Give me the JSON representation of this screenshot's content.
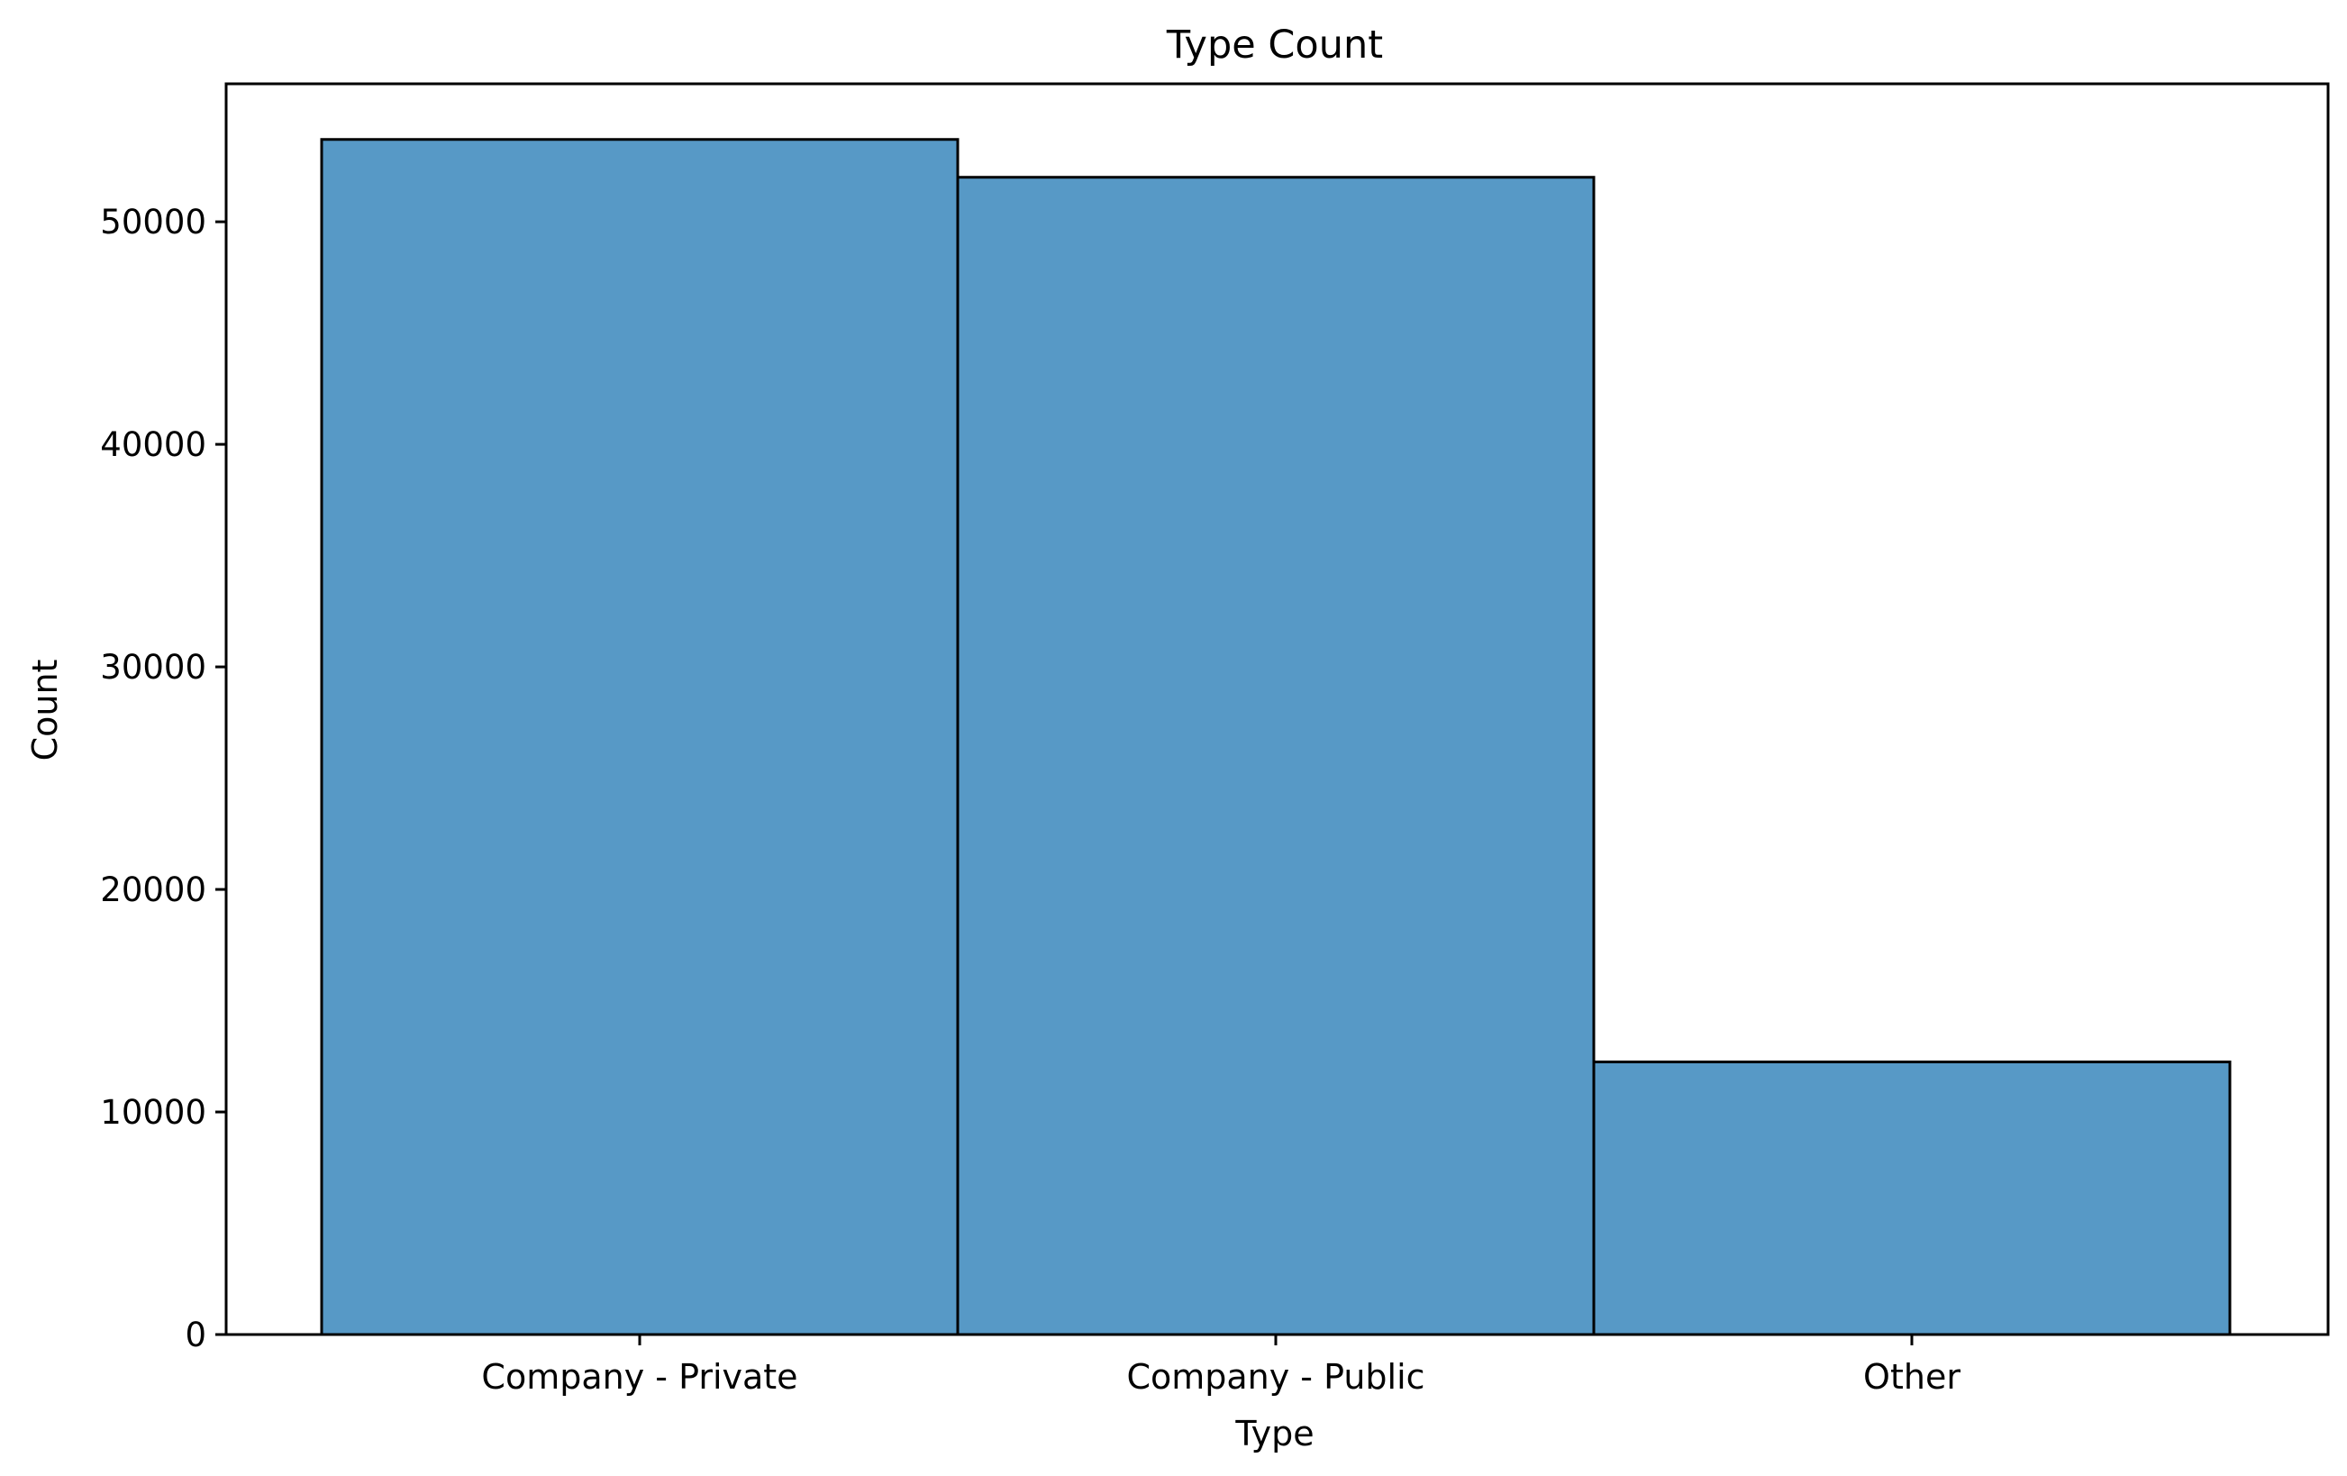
{
  "chart_data": {
    "type": "bar",
    "title": "Type Count",
    "xlabel": "Type",
    "ylabel": "Count",
    "categories": [
      "Company - Private",
      "Company - Public",
      "Other"
    ],
    "values": [
      53700,
      52000,
      12250
    ],
    "ylim": [
      0,
      56200
    ],
    "yticks": [
      0,
      10000,
      20000,
      30000,
      40000,
      50000
    ],
    "ytick_labels": [
      "0",
      "10000",
      "20000",
      "30000",
      "40000",
      "50000"
    ],
    "grid": false,
    "legend": "none",
    "colors": {
      "bar": "#5799c6",
      "edge": "#000000"
    }
  }
}
